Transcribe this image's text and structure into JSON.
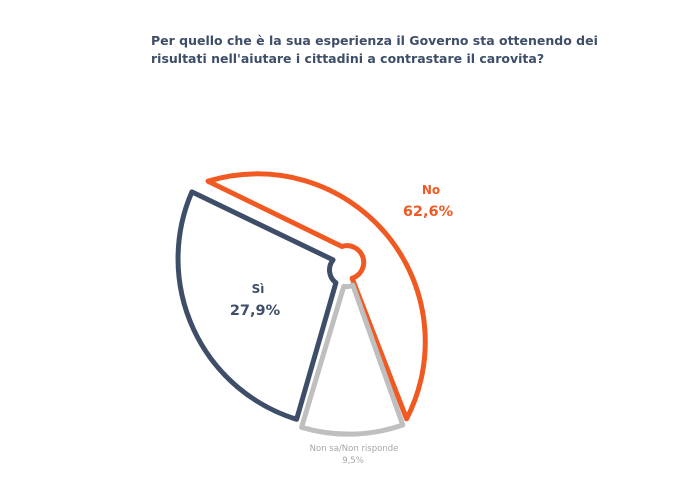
{
  "title": {
    "line1": "Per quello che è la sua esperienza il Governo sta ottenendo dei",
    "line2": "risultati nell'aiutare i cittadini a contrastare il carovita?"
  },
  "colors": {
    "no": "#f05a22",
    "si": "#3e4e68",
    "non_sa": "#bfbfbf",
    "title": "#3e4e68",
    "background": "#ffffff"
  },
  "chart_data": {
    "type": "pie",
    "title": "Per quello che è la sua esperienza il Governo sta ottenendo dei risultati nell'aiutare i cittadini a contrastare il carovita?",
    "slices": [
      {
        "label": "No",
        "value": 62.6,
        "value_label": "62,6%",
        "color": "#f05a22"
      },
      {
        "label": "Sì",
        "value": 27.9,
        "value_label": "27,9%",
        "color": "#3e4e68"
      },
      {
        "label": "Non sa/Non risponde",
        "value": 9.5,
        "value_label": "9,5%",
        "color": "#bfbfbf"
      }
    ],
    "legend": "none"
  }
}
